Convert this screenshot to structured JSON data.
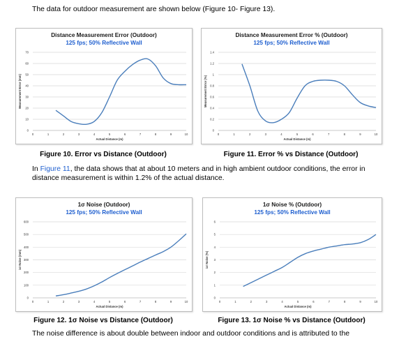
{
  "intro_text": "The data for outdoor measurement are shown below (Figure 10- Figure 13).",
  "middle_text": {
    "before_link": "In ",
    "link": "Figure 11",
    "after_link": ", the data shows that at about 10 meters and in high ambient outdoor conditions, the error in distance measurement is within 1.2% of the actual distance."
  },
  "bottom_text": "The noise difference is about double between indoor and outdoor conditions and is attributed to the",
  "figures": [
    {
      "caption": "Figure 10. Error vs Distance (Outdoor)"
    },
    {
      "caption": "Figure 11. Error % vs Distance (Outdoor)"
    },
    {
      "caption": "Figure 12. 1σ Noise vs Distance (Outdoor)"
    },
    {
      "caption": "Figure 13. 1σ Noise % vs Distance (Outdoor)"
    }
  ],
  "colors": {
    "line": "#4a7ebb",
    "subtitle": "#1f5fcf",
    "grid": "#d9d9d9",
    "link": "#1f5fcf"
  },
  "chart_data": [
    {
      "type": "line",
      "title": "Distance Measurement Error (Outdoor)",
      "subtitle": "125 fps; 50% Reflective Wall",
      "xlabel": "Actual Distance (m)",
      "ylabel": "Measurement Error (mm)",
      "xlim": [
        0,
        10
      ],
      "ylim": [
        0,
        70
      ],
      "xticks": [
        0,
        1,
        2,
        3,
        4,
        5,
        6,
        7,
        8,
        9,
        10
      ],
      "yticks": [
        0,
        10,
        20,
        30,
        40,
        50,
        60,
        70
      ],
      "grid": true,
      "series": [
        {
          "x": [
            1.5,
            2,
            2.5,
            3,
            3.5,
            4,
            4.5,
            5,
            5.5,
            6,
            6.5,
            7,
            7.5,
            8,
            8.5,
            9,
            9.5,
            10
          ],
          "y": [
            18,
            13,
            8,
            6,
            5.5,
            8,
            16,
            30,
            45,
            53,
            59,
            63,
            64,
            58,
            47,
            42,
            41,
            41
          ]
        }
      ]
    },
    {
      "type": "line",
      "title": "Distance Measurement Error % (Outdoor)",
      "subtitle": "125 fps; 50% Reflective Wall",
      "xlabel": "Actual Distance (m)",
      "ylabel": "Measurement Error (%)",
      "xlim": [
        0,
        10
      ],
      "ylim": [
        0,
        1.4
      ],
      "xticks": [
        0,
        1,
        2,
        3,
        4,
        5,
        6,
        7,
        8,
        9,
        10
      ],
      "yticks": [
        0,
        0.2,
        0.4,
        0.6,
        0.8,
        1,
        1.2,
        1.4
      ],
      "grid": true,
      "series": [
        {
          "x": [
            1.5,
            2,
            2.5,
            3,
            3.5,
            4,
            4.5,
            5,
            5.5,
            6,
            6.5,
            7,
            7.5,
            8,
            8.5,
            9,
            9.5,
            10
          ],
          "y": [
            1.19,
            0.8,
            0.35,
            0.17,
            0.14,
            0.2,
            0.32,
            0.58,
            0.8,
            0.88,
            0.9,
            0.9,
            0.88,
            0.8,
            0.64,
            0.5,
            0.44,
            0.41
          ]
        }
      ]
    },
    {
      "type": "line",
      "title": "1σ Noise (Outdoor)",
      "subtitle": "125 fps; 50% Reflective Wall",
      "xlabel": "Actual Distance (m)",
      "ylabel": "1σ Noise (mm)",
      "xlim": [
        0,
        10
      ],
      "ylim": [
        0,
        600
      ],
      "xticks": [
        0,
        1,
        2,
        3,
        4,
        5,
        6,
        7,
        8,
        9,
        10
      ],
      "yticks": [
        0,
        100,
        200,
        300,
        400,
        500,
        600
      ],
      "grid": true,
      "series": [
        {
          "x": [
            1.5,
            2,
            2.5,
            3,
            3.5,
            4,
            4.5,
            5,
            5.5,
            6,
            6.5,
            7,
            7.5,
            8,
            8.5,
            9,
            9.5,
            10
          ],
          "y": [
            15,
            25,
            38,
            52,
            70,
            95,
            125,
            160,
            192,
            222,
            252,
            282,
            310,
            338,
            365,
            400,
            450,
            505
          ]
        }
      ]
    },
    {
      "type": "line",
      "title": "1σ Noise % (Outdoor)",
      "subtitle": "125 fps; 50% Reflective Wall",
      "xlabel": "Actual Distance (m)",
      "ylabel": "1σ Noise (%)",
      "xlim": [
        0,
        10
      ],
      "ylim": [
        0,
        6
      ],
      "xticks": [
        0,
        1,
        2,
        3,
        4,
        5,
        6,
        7,
        8,
        9,
        10
      ],
      "yticks": [
        0,
        1,
        2,
        3,
        4,
        5,
        6
      ],
      "grid": true,
      "series": [
        {
          "x": [
            1.5,
            2,
            2.5,
            3,
            3.5,
            4,
            4.5,
            5,
            5.5,
            6,
            6.5,
            7,
            7.5,
            8,
            8.5,
            9,
            9.5,
            10
          ],
          "y": [
            0.9,
            1.2,
            1.5,
            1.8,
            2.1,
            2.4,
            2.8,
            3.2,
            3.5,
            3.7,
            3.85,
            4.0,
            4.1,
            4.2,
            4.25,
            4.35,
            4.6,
            5.0
          ]
        }
      ]
    }
  ]
}
